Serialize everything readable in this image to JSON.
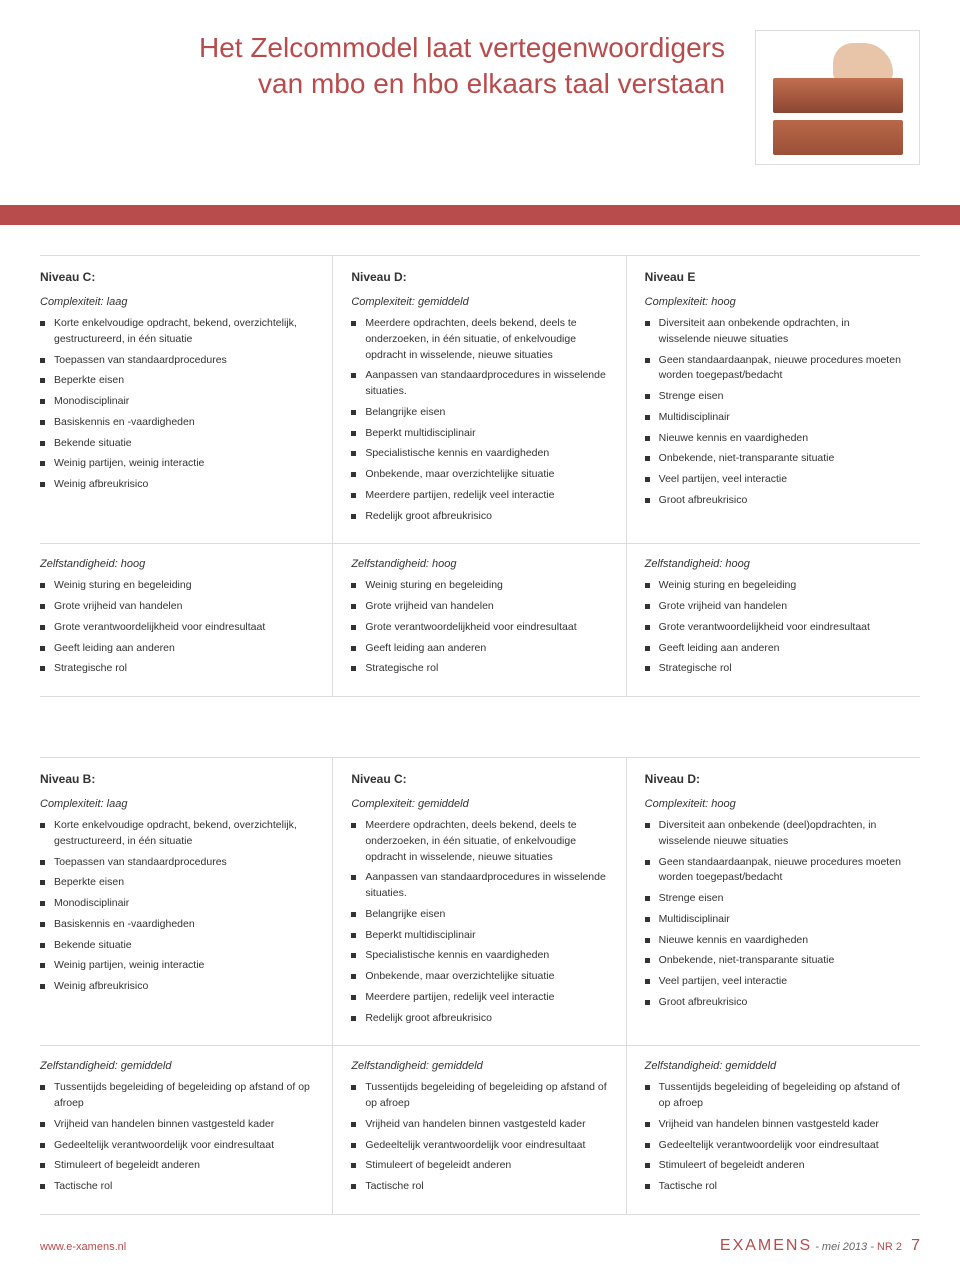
{
  "title_line1": "Het Zelcommodel laat vertegenwoordigers",
  "title_line2": "van mbo en hbo elkaars taal verstaan",
  "title_color": "#b84b4b",
  "banner_color": "#b84b4b",
  "border_color": "#dddddd",
  "bullet_color": "#333333",
  "image_alt": "hand-placing-bricks",
  "table1": {
    "cols": [
      {
        "header": "Niveau C:",
        "sub": "Complexiteit: laag",
        "items": [
          "Korte enkelvoudige opdracht, bekend, overzichtelijk, gestructureerd, in één situatie",
          "Toepassen van standaardprocedures",
          "Beperkte eisen",
          "Monodisciplinair",
          "Basiskennis en -vaardigheden",
          "Bekende situatie",
          "Weinig partijen, weinig interactie",
          "Weinig afbreukrisico"
        ]
      },
      {
        "header": "Niveau D:",
        "sub": "Complexiteit: gemiddeld",
        "items": [
          "Meerdere opdrachten, deels bekend, deels te onderzoeken, in één situatie, of enkelvoudige opdracht in wisselende, nieuwe situaties",
          "Aanpassen van standaardprocedures in wisselende situaties.",
          "Belangrijke eisen",
          "Beperkt multidisciplinair",
          "Specialistische kennis en vaardigheden",
          "Onbekende, maar overzichtelijke situatie",
          "Meerdere partijen, redelijk veel interactie",
          "Redelijk groot afbreukrisico"
        ]
      },
      {
        "header": "Niveau E",
        "sub": "Complexiteit: hoog",
        "items": [
          "Diversiteit aan onbekende opdrachten,  in wisselende nieuwe situaties",
          "Geen standaardaanpak, nieuwe procedures moeten worden toegepast/bedacht",
          "Strenge eisen",
          "Multidisciplinair",
          "Nieuwe kennis en vaardigheden",
          "Onbekende, niet-transparante situatie",
          "Veel partijen, veel interactie",
          "Groot afbreukrisico"
        ]
      }
    ],
    "row2": {
      "sub": "Zelfstandigheid: hoog",
      "cols": [
        [
          "Weinig sturing en begeleiding",
          "Grote vrijheid van handelen",
          "Grote verantwoordelijkheid voor eindresultaat",
          "Geeft leiding aan anderen",
          "Strategische rol"
        ],
        [
          "Weinig sturing en begeleiding",
          "Grote vrijheid van handelen",
          "Grote verantwoordelijkheid voor eindresultaat",
          "Geeft leiding aan anderen",
          "Strategische rol"
        ],
        [
          "Weinig sturing en begeleiding",
          "Grote vrijheid van handelen",
          "Grote verantwoordelijkheid voor eindresultaat",
          "Geeft leiding aan anderen",
          "Strategische rol"
        ]
      ]
    }
  },
  "table2": {
    "cols": [
      {
        "header": "Niveau B:",
        "sub": "Complexiteit: laag",
        "items": [
          "Korte enkelvoudige opdracht, bekend, overzichtelijk, gestructureerd, in één situatie",
          "Toepassen van standaardprocedures",
          "Beperkte eisen",
          "Monodisciplinair",
          "Basiskennis en -vaardigheden",
          "Bekende situatie",
          "Weinig partijen, weinig interactie",
          "Weinig afbreukrisico"
        ]
      },
      {
        "header": "Niveau C:",
        "sub": "Complexiteit: gemiddeld",
        "items": [
          "Meerdere opdrachten, deels bekend, deels te onderzoeken,  in één situatie, of enkelvoudige opdracht in wisselende, nieuwe situaties",
          "Aanpassen van standaardprocedures in wisselende situaties.",
          "Belangrijke eisen",
          "Beperkt multidisciplinair",
          "Specialistische kennis en vaardigheden",
          "Onbekende, maar overzichtelijke situatie",
          "Meerdere partijen, redelijk veel interactie",
          "Redelijk groot afbreukrisico"
        ]
      },
      {
        "header": "Niveau D:",
        "sub": "Complexiteit: hoog",
        "items": [
          "Diversiteit aan onbekende (deel)opdrachten,  in wisselende nieuwe situaties",
          "Geen standaardaanpak, nieuwe procedures moeten worden toegepast/bedacht",
          "Strenge eisen",
          "Multidisciplinair",
          "Nieuwe kennis en vaardigheden",
          "Onbekende, niet-transparante situatie",
          "Veel partijen, veel interactie",
          "Groot afbreukrisico"
        ]
      }
    ],
    "row2": {
      "sub": "Zelfstandigheid: gemiddeld",
      "cols": [
        [
          "Tussentijds begeleiding of begeleiding op afstand of op afroep",
          "Vrijheid van handelen binnen vastgesteld kader",
          "Gedeeltelijk verantwoordelijk voor eindresultaat",
          "Stimuleert of begeleidt anderen",
          "Tactische rol"
        ],
        [
          "Tussentijds begeleiding of begeleiding op afstand of op afroep",
          "Vrijheid van handelen binnen vastgesteld kader",
          "Gedeeltelijk verantwoordelijk voor eindresultaat",
          "Stimuleert of begeleidt anderen",
          "Tactische rol"
        ],
        [
          "Tussentijds begeleiding of begeleiding op afstand of op afroep",
          "Vrijheid van handelen binnen vastgesteld kader",
          "Gedeeltelijk verantwoordelijk voor eindresultaat",
          "Stimuleert of begeleidt anderen",
          "Tactische rol"
        ]
      ]
    }
  },
  "footer": {
    "url": "www.e-xamens.nl",
    "magazine": "EXAMENS",
    "date": "- mei 2013 -",
    "issue": "NR 2",
    "page": "7"
  }
}
